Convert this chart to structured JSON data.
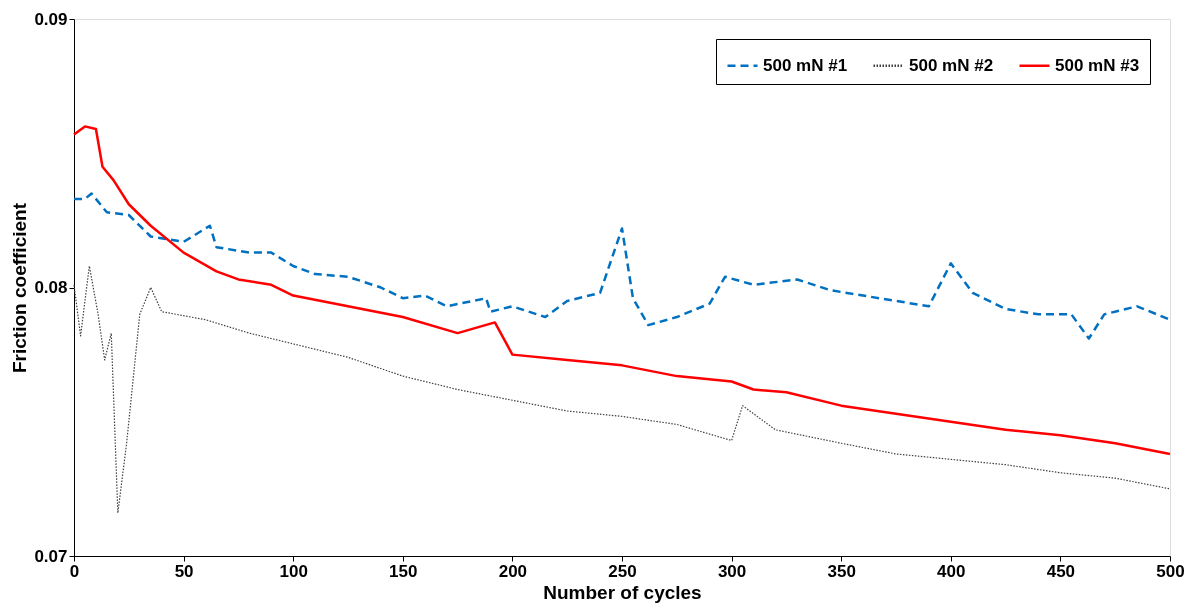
{
  "chart_data": {
    "type": "line",
    "xlabel": "Number of cycles",
    "ylabel": "Friction coefficient",
    "xlim": [
      0,
      500
    ],
    "xticks": [
      0,
      50,
      100,
      150,
      200,
      250,
      300,
      350,
      400,
      450,
      500
    ],
    "ylim": [
      0.07,
      0.09
    ],
    "yticks": [
      0.07,
      0.08,
      0.09
    ],
    "grid": false,
    "legend": "top right",
    "marker": "none",
    "series": [
      {
        "name": "500 mN #1",
        "color": "#0070c0",
        "line_style": "dashed",
        "x": [
          0,
          5,
          8,
          15,
          25,
          35,
          50,
          62,
          65,
          80,
          90,
          100,
          110,
          125,
          140,
          150,
          160,
          170,
          188,
          190,
          200,
          215,
          225,
          240,
          250,
          255,
          262,
          275,
          290,
          297,
          310,
          330,
          345,
          360,
          375,
          390,
          400,
          410,
          425,
          440,
          455,
          463,
          470,
          485,
          500
        ],
        "values": [
          0.0833,
          0.0833,
          0.0835,
          0.0828,
          0.0827,
          0.0819,
          0.0817,
          0.0823,
          0.0815,
          0.0813,
          0.0813,
          0.0808,
          0.0805,
          0.0804,
          0.08,
          0.0796,
          0.0797,
          0.0793,
          0.0796,
          0.0791,
          0.0793,
          0.0789,
          0.0795,
          0.0798,
          0.0822,
          0.0796,
          0.0786,
          0.0789,
          0.0794,
          0.0804,
          0.0801,
          0.0803,
          0.0799,
          0.0797,
          0.0795,
          0.0793,
          0.0809,
          0.0798,
          0.0792,
          0.079,
          0.079,
          0.0781,
          0.079,
          0.0793,
          0.0788
        ]
      },
      {
        "name": "500 mN #2",
        "color": "#404040",
        "line_style": "dotted",
        "x": [
          0,
          3,
          7,
          11,
          14,
          17,
          20,
          24,
          30,
          35,
          40,
          60,
          80,
          100,
          125,
          150,
          175,
          200,
          225,
          250,
          275,
          300,
          305,
          320,
          350,
          375,
          400,
          425,
          450,
          475,
          500
        ],
        "values": [
          0.0801,
          0.0782,
          0.0808,
          0.079,
          0.0773,
          0.0783,
          0.0716,
          0.0742,
          0.079,
          0.08,
          0.0791,
          0.0788,
          0.0783,
          0.0779,
          0.0774,
          0.0767,
          0.0762,
          0.0758,
          0.0754,
          0.0752,
          0.0749,
          0.0743,
          0.0756,
          0.0747,
          0.0742,
          0.0738,
          0.0736,
          0.0734,
          0.0731,
          0.0729,
          0.0725
        ]
      },
      {
        "name": "500 mN #3",
        "color": "#ff0000",
        "line_style": "solid",
        "x": [
          0,
          5,
          10,
          13,
          18,
          25,
          35,
          50,
          65,
          75,
          90,
          100,
          125,
          150,
          175,
          192,
          200,
          225,
          250,
          275,
          300,
          310,
          325,
          350,
          375,
          400,
          425,
          450,
          475,
          500
        ],
        "values": [
          0.0857,
          0.086,
          0.0859,
          0.0845,
          0.084,
          0.0831,
          0.0823,
          0.0813,
          0.0806,
          0.0803,
          0.0801,
          0.0797,
          0.0793,
          0.0789,
          0.0783,
          0.0787,
          0.0775,
          0.0773,
          0.0771,
          0.0767,
          0.0765,
          0.0762,
          0.0761,
          0.0756,
          0.0753,
          0.075,
          0.0747,
          0.0745,
          0.0742,
          0.0738
        ]
      }
    ]
  }
}
